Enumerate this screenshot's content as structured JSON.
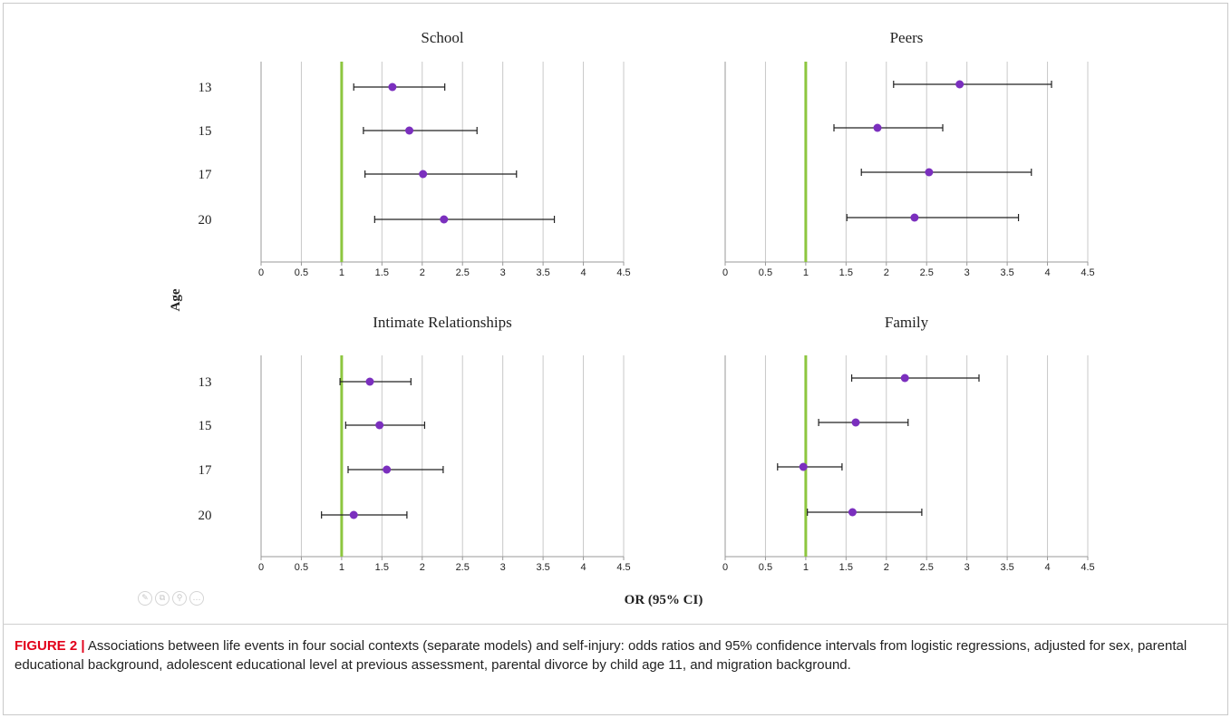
{
  "caption": {
    "label": "FIGURE 2 |",
    "text": "Associations between life events in four social contexts (separate models) and self-injury: odds ratios and 95% confidence intervals from logistic regressions, adjusted for sex, parental educational background, adolescent educational level at previous assessment, parental divorce by child age 11, and migration background."
  },
  "toolbar": [
    {
      "name": "edit-icon",
      "glyph": "✎"
    },
    {
      "name": "copy-icon",
      "glyph": "⧉"
    },
    {
      "name": "zoom-icon",
      "glyph": "⚲"
    },
    {
      "name": "more-icon",
      "glyph": "…"
    }
  ],
  "chart_data": {
    "type": "forest",
    "ylabel": "Age",
    "xlabel": "OR (95% CI)",
    "xlim": [
      0,
      4.5
    ],
    "xticks": [
      "0",
      "0.5",
      "1",
      "1.5",
      "2",
      "2.5",
      "3",
      "3.5",
      "4",
      "4.5"
    ],
    "reference_line": 1,
    "grid": "vertical",
    "colors": {
      "point": "#7b2fbe",
      "reference": "#8dc63f",
      "grid": "#c8c8c8",
      "whisker": "#222222"
    },
    "categories": [
      "13",
      "15",
      "17",
      "20"
    ],
    "panels": [
      {
        "title": "School",
        "estimates": [
          {
            "age": "13",
            "or": 1.63,
            "lower": 1.15,
            "upper": 2.28
          },
          {
            "age": "15",
            "or": 1.84,
            "lower": 1.27,
            "upper": 2.68
          },
          {
            "age": "17",
            "or": 2.01,
            "lower": 1.29,
            "upper": 3.17
          },
          {
            "age": "20",
            "or": 2.27,
            "lower": 1.41,
            "upper": 3.64
          }
        ]
      },
      {
        "title": "Peers",
        "estimates": [
          {
            "age": "13",
            "or": 2.91,
            "lower": 2.09,
            "upper": 4.05
          },
          {
            "age": "15",
            "or": 1.89,
            "lower": 1.35,
            "upper": 2.7
          },
          {
            "age": "17",
            "or": 2.53,
            "lower": 1.69,
            "upper": 3.8
          },
          {
            "age": "20",
            "or": 2.35,
            "lower": 1.51,
            "upper": 3.64
          }
        ]
      },
      {
        "title": "Intimate Relationships",
        "estimates": [
          {
            "age": "13",
            "or": 1.35,
            "lower": 0.98,
            "upper": 1.86
          },
          {
            "age": "15",
            "or": 1.47,
            "lower": 1.05,
            "upper": 2.03
          },
          {
            "age": "17",
            "or": 1.56,
            "lower": 1.08,
            "upper": 2.26
          },
          {
            "age": "20",
            "or": 1.15,
            "lower": 0.75,
            "upper": 1.81
          }
        ]
      },
      {
        "title": "Family",
        "estimates": [
          {
            "age": "13",
            "or": 2.23,
            "lower": 1.57,
            "upper": 3.15
          },
          {
            "age": "15",
            "or": 1.62,
            "lower": 1.16,
            "upper": 2.27
          },
          {
            "age": "17",
            "or": 0.97,
            "lower": 0.65,
            "upper": 1.45
          },
          {
            "age": "20",
            "or": 1.58,
            "lower": 1.02,
            "upper": 2.44
          }
        ]
      }
    ]
  }
}
